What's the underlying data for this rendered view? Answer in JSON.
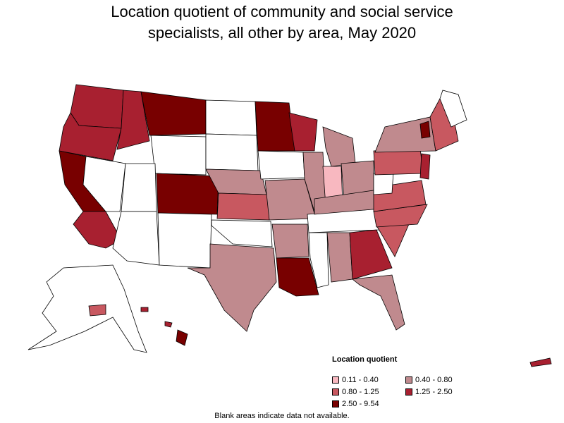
{
  "title_line1": "Location quotient of community and social service",
  "title_line2": "specialists, all other by area, May 2020",
  "legend": {
    "title": "Location quotient",
    "items": [
      {
        "label": "0.11 - 0.40",
        "color": "#f8b8c0"
      },
      {
        "label": "0.40 - 0.80",
        "color": "#c08a8e"
      },
      {
        "label": "0.80 - 1.25",
        "color": "#c85860"
      },
      {
        "label": "1.25 - 2.50",
        "color": "#a82030"
      },
      {
        "label": "2.50 - 9.54",
        "color": "#780000"
      }
    ]
  },
  "footnote": "Blank areas indicate data not available.",
  "colors": {
    "no_data": "#ffffff",
    "border": "#000000"
  }
}
